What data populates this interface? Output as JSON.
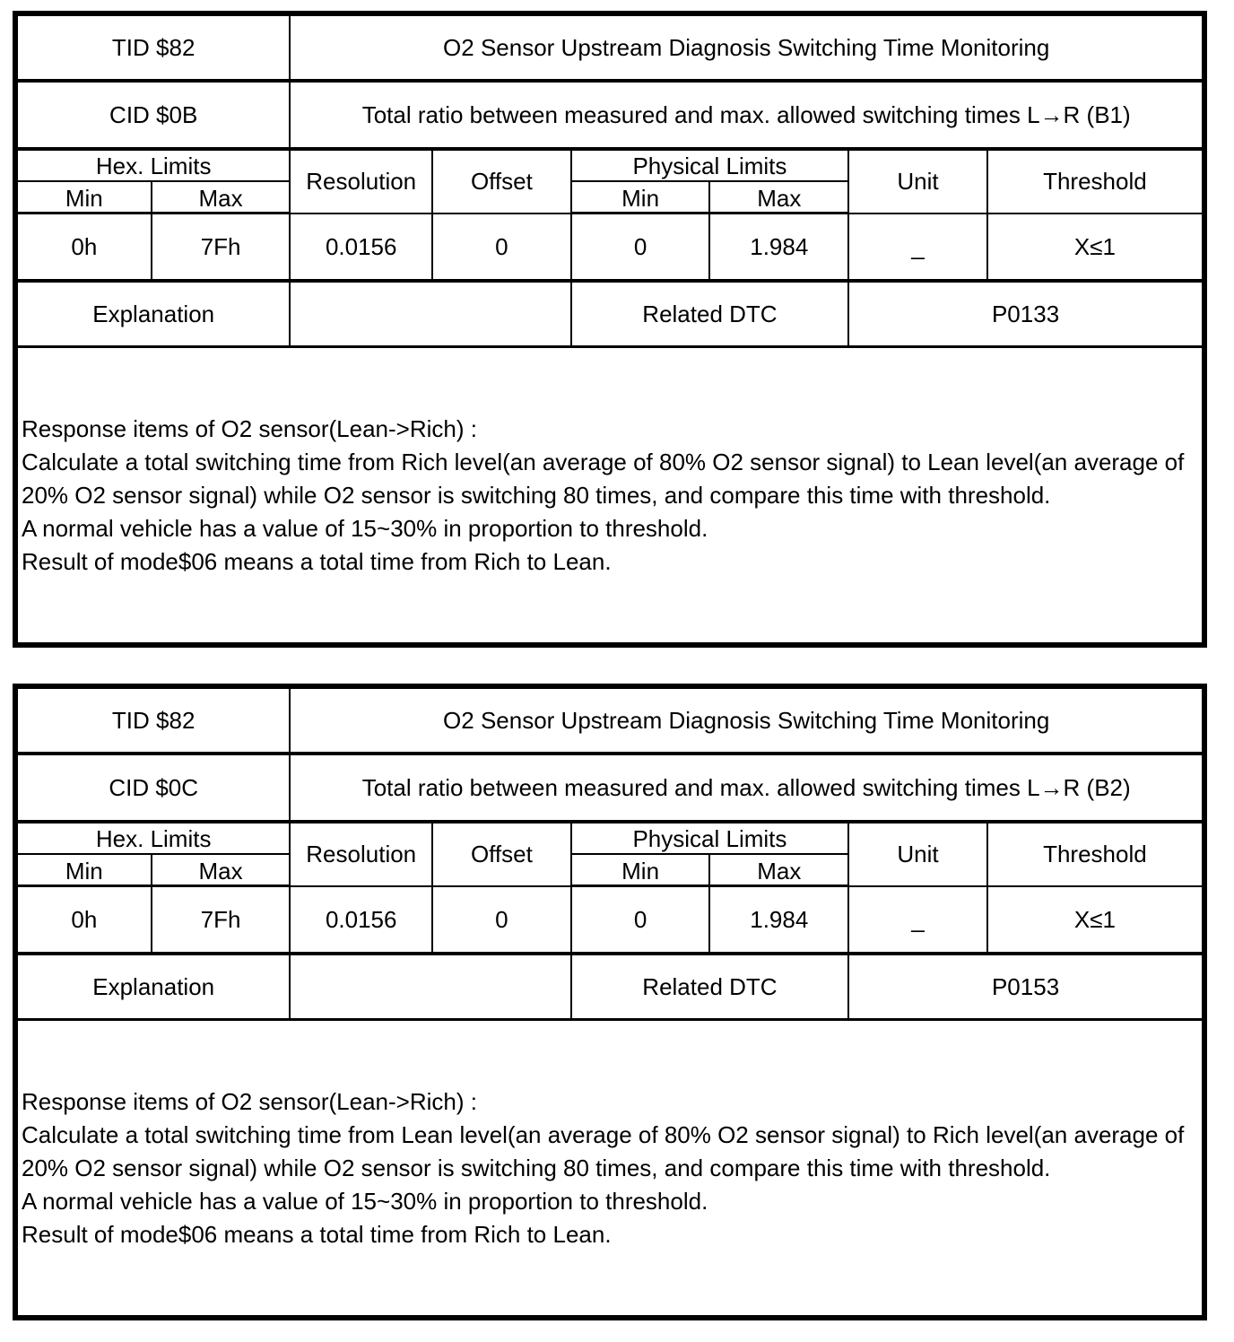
{
  "header_labels": {
    "hex_limits": "Hex. Limits",
    "min": "Min",
    "max": "Max",
    "resolution": "Resolution",
    "offset": "Offset",
    "physical_limits": "Physical Limits",
    "unit": "Unit",
    "threshold": "Threshold",
    "explanation": "Explanation",
    "related_dtc": "Related DTC"
  },
  "tables": [
    {
      "tid": "TID $82",
      "tid_desc": "O2 Sensor Upstream Diagnosis Switching Time Monitoring",
      "cid": "CID $0B",
      "cid_desc": "Total ratio between measured and max. allowed switching times L→R (B1)",
      "hex_min": "0h",
      "hex_max": "7Fh",
      "resolution": "0.0156",
      "offset": "0",
      "phys_min": "0",
      "phys_max": "1.984",
      "unit": "_",
      "threshold": "X≤1",
      "explanation_value": "",
      "related_dtc": "P0133",
      "text_lines": [
        "Response items of O2 sensor(Lean->Rich) :",
        "Calculate a total switching time from Rich level(an average of 80% O2 sensor signal) to Lean level(an average of 20% O2 sensor signal) while O2 sensor is switching 80 times, and compare this time with threshold.",
        "A normal vehicle has a value of 15~30% in proportion to threshold.",
        "Result of mode$06 means a total time from Rich to Lean."
      ]
    },
    {
      "tid": "TID $82",
      "tid_desc": "O2 Sensor Upstream Diagnosis Switching Time Monitoring",
      "cid": "CID $0C",
      "cid_desc": "Total ratio between measured and max. allowed switching times L→R (B2)",
      "hex_min": "0h",
      "hex_max": "7Fh",
      "resolution": "0.0156",
      "offset": "0",
      "phys_min": "0",
      "phys_max": "1.984",
      "unit": "_",
      "threshold": "X≤1",
      "explanation_value": "",
      "related_dtc": "P0153",
      "text_lines": [
        "Response items of O2 sensor(Lean->Rich) :",
        "Calculate a total switching time from Lean level(an average of 80% O2 sensor signal) to Rich level(an average of 20% O2 sensor signal) while O2 sensor is switching 80 times, and compare this time with threshold.",
        "A normal vehicle has a value of 15~30% in proportion to threshold.",
        "Result of mode$06 means a total time from Rich to Lean."
      ]
    }
  ]
}
